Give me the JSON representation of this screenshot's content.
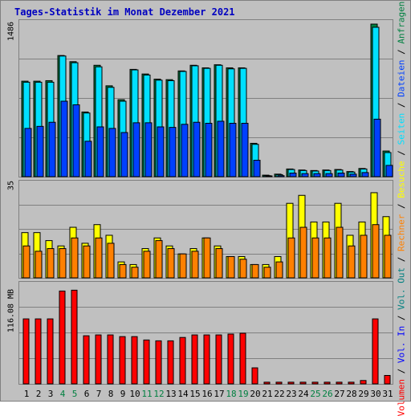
{
  "title": "Tages-Statistik im Monat Dezember 2021",
  "y_max_labels": {
    "top": "1486",
    "middle": "35",
    "bottom": "116.08 MB"
  },
  "legend": {
    "sep": " / ",
    "volumen": "Volumen",
    "vol_in": "Vol. In",
    "vol_out": "Vol. Out",
    "rechner": "Rechner",
    "besuche": "Besuche",
    "seiten": "Seiten",
    "dateien": "Dateien",
    "anfragen": "Anfragen"
  },
  "colors": {
    "anfragen": "#008040",
    "dateien": "#0040ff",
    "seiten": "#00e0ff",
    "besuche": "#ffff00",
    "rechner": "#ff8000",
    "volumen": "#ff0000",
    "vol_in": "#0000ff",
    "vol_out": "#008080",
    "weekend_label": "#008040",
    "weekday_label": "#000000"
  },
  "chart_data": [
    {
      "type": "bar",
      "title": "Tages-Statistik im Monat Dezember 2021",
      "ylim": [
        0,
        1486
      ],
      "ymax_label": "1486",
      "categories": [
        "1",
        "2",
        "3",
        "4",
        "5",
        "6",
        "7",
        "8",
        "9",
        "10",
        "11",
        "12",
        "13",
        "14",
        "15",
        "16",
        "17",
        "18",
        "19",
        "20",
        "21",
        "22",
        "23",
        "24",
        "25",
        "26",
        "27",
        "28",
        "29",
        "30",
        "31"
      ],
      "weekend_categories": [
        "4",
        "5",
        "11",
        "12",
        "18",
        "19",
        "25",
        "26"
      ],
      "series": [
        {
          "name": "Anfragen",
          "values": [
            930,
            930,
            935,
            1180,
            1120,
            630,
            1085,
            885,
            750,
            1045,
            1000,
            950,
            945,
            1030,
            1085,
            1060,
            1090,
            1060,
            1060,
            325,
            15,
            25,
            75,
            65,
            60,
            65,
            70,
            50,
            80,
            1486,
            250
          ]
        },
        {
          "name": "Dateien",
          "values": [
            920,
            920,
            920,
            1175,
            1110,
            620,
            1070,
            870,
            735,
            1040,
            990,
            940,
            935,
            1025,
            1080,
            1055,
            1085,
            1050,
            1055,
            315,
            10,
            20,
            70,
            60,
            55,
            60,
            65,
            45,
            75,
            1455,
            235
          ]
        },
        {
          "name": "Seiten",
          "values": [
            470,
            490,
            530,
            735,
            700,
            345,
            485,
            470,
            430,
            525,
            525,
            485,
            480,
            510,
            530,
            520,
            540,
            520,
            520,
            160,
            5,
            10,
            35,
            30,
            30,
            30,
            35,
            25,
            40,
            560,
            110
          ]
        }
      ]
    },
    {
      "type": "bar",
      "ylim": [
        0,
        35
      ],
      "ymax_label": "35",
      "categories": [
        "1",
        "2",
        "3",
        "4",
        "5",
        "6",
        "7",
        "8",
        "9",
        "10",
        "11",
        "12",
        "13",
        "14",
        "15",
        "16",
        "17",
        "18",
        "19",
        "20",
        "21",
        "22",
        "23",
        "24",
        "25",
        "26",
        "27",
        "28",
        "29",
        "30",
        "31"
      ],
      "series": [
        {
          "name": "Besuche",
          "values": [
            17,
            17,
            14,
            12,
            19,
            13,
            20,
            16,
            6,
            5,
            11,
            15,
            12,
            9,
            11,
            15,
            12,
            8,
            8,
            5,
            5,
            8,
            28,
            31,
            21,
            21,
            28,
            16,
            21,
            32,
            23
          ]
        },
        {
          "name": "Rechner",
          "values": [
            12,
            10,
            11,
            11,
            15,
            12,
            15,
            13,
            5,
            4,
            10,
            14,
            11,
            9,
            10,
            15,
            11,
            8,
            7,
            5,
            4,
            6,
            15,
            19,
            15,
            15,
            19,
            12,
            16,
            20,
            16
          ]
        }
      ]
    },
    {
      "type": "bar",
      "ylim": [
        0,
        116.08
      ],
      "ymax_label": "116.08 MB",
      "categories": [
        "1",
        "2",
        "3",
        "4",
        "5",
        "6",
        "7",
        "8",
        "9",
        "10",
        "11",
        "12",
        "13",
        "14",
        "15",
        "16",
        "17",
        "18",
        "19",
        "20",
        "21",
        "22",
        "23",
        "24",
        "25",
        "26",
        "27",
        "28",
        "29",
        "30",
        "31"
      ],
      "series": [
        {
          "name": "Volumen",
          "values": [
            77,
            77,
            77,
            110,
            111,
            57,
            58,
            58,
            56,
            56,
            52,
            51,
            51,
            55,
            58,
            58,
            58,
            59,
            60,
            19,
            2,
            2,
            2,
            2,
            2,
            2,
            2,
            2,
            4,
            77,
            10
          ]
        }
      ]
    }
  ]
}
